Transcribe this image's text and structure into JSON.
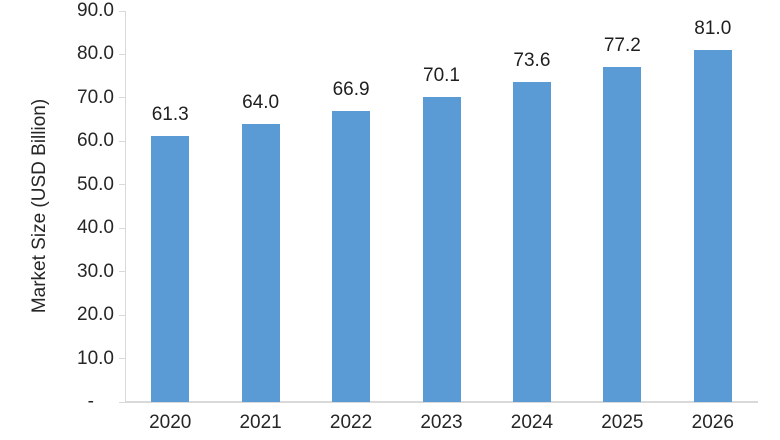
{
  "chart_data": {
    "type": "bar",
    "title": "",
    "xlabel": "",
    "ylabel": "Market Size (USD Billion)",
    "categories": [
      "2020",
      "2021",
      "2022",
      "2023",
      "2024",
      "2025",
      "2026"
    ],
    "values": [
      61.3,
      64.0,
      66.9,
      70.1,
      73.6,
      77.2,
      81.0
    ],
    "data_labels": [
      "61.3",
      "64.0",
      "66.9",
      "70.1",
      "73.6",
      "77.2",
      "81.0"
    ],
    "ylim": [
      0,
      90
    ],
    "ytick_interval": 10,
    "ytick_labels": [
      "-",
      "10.0",
      "20.0",
      "30.0",
      "40.0",
      "50.0",
      "60.0",
      "70.0",
      "80.0",
      "90.0"
    ],
    "grid": false,
    "legend": "none",
    "colors": {
      "bar": "#5B9BD5",
      "axis": "#D9D9D9",
      "text": "#262626"
    }
  }
}
